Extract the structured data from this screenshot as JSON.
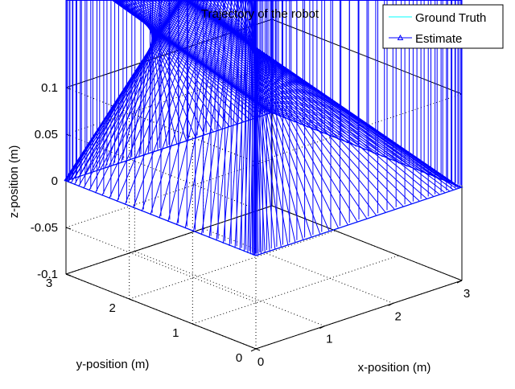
{
  "chart_data": {
    "type": "line",
    "projection": "3d",
    "title": "Trajectory of the robot",
    "xlabel": "x-position (m)",
    "ylabel": "y-position (m)",
    "zlabel": "z-position (m)",
    "xlim": [
      0,
      3
    ],
    "ylim": [
      0,
      3
    ],
    "zlim": [
      -0.1,
      0.1
    ],
    "xticks": [
      "0",
      "1",
      "2",
      "3"
    ],
    "yticks": [
      "0",
      "1",
      "2",
      "3"
    ],
    "zticks": [
      "-0.1",
      "-0.05",
      "0",
      "0.05",
      "0.1"
    ],
    "grid": true,
    "box": true,
    "legend_position": "top-right",
    "series": [
      {
        "name": "Ground Truth",
        "color": "#00ffff",
        "marker": "none",
        "x": [
          0,
          3,
          3,
          0,
          0
        ],
        "y": [
          0,
          0,
          3,
          3,
          0
        ],
        "z": [
          0,
          0,
          0,
          0,
          0
        ]
      },
      {
        "name": "Estimate",
        "color": "#0000ff",
        "marker": "triangle",
        "x": [
          0,
          3,
          3,
          0,
          0
        ],
        "y": [
          0,
          0,
          3,
          3,
          0
        ],
        "z": [
          0,
          0,
          0,
          0,
          0
        ]
      }
    ]
  }
}
